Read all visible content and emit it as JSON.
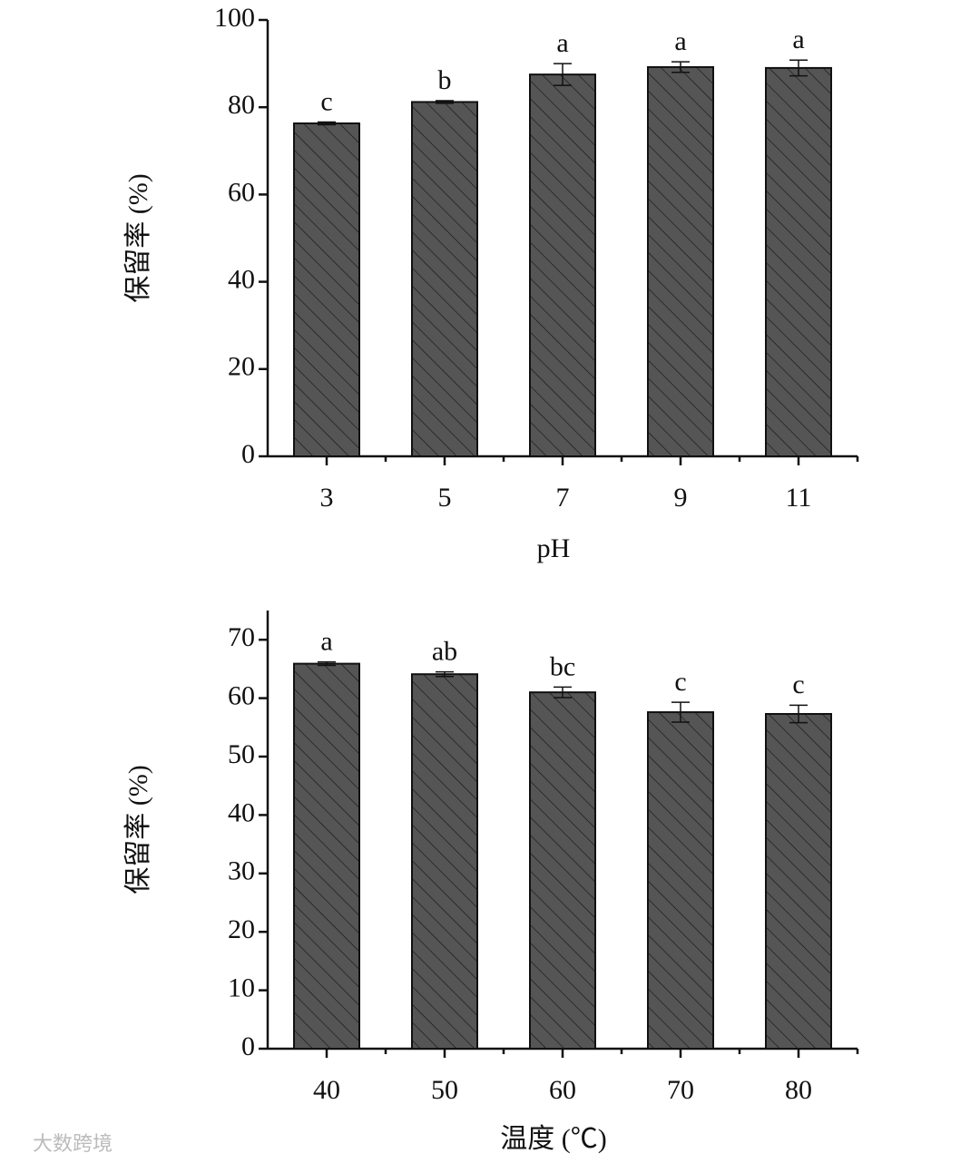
{
  "chart_data": [
    {
      "type": "bar",
      "x_label": "pH",
      "y_label": "保留率 (%)",
      "categories": [
        "3",
        "5",
        "7",
        "9",
        "11"
      ],
      "values": [
        76.3,
        81.2,
        87.5,
        89.2,
        89.0
      ],
      "errors": [
        0.3,
        0.3,
        2.5,
        1.2,
        1.8
      ],
      "annotations": [
        "c",
        "b",
        "a",
        "a",
        "a"
      ],
      "color": "#555555",
      "ylim": [
        0,
        100
      ],
      "yticks": [
        0,
        20,
        40,
        60,
        80,
        100
      ]
    },
    {
      "type": "bar",
      "x_label": "温度 (℃)",
      "y_label": "保留率 (%)",
      "categories": [
        "40",
        "50",
        "60",
        "70",
        "80"
      ],
      "values": [
        65.9,
        64.1,
        61.0,
        57.6,
        57.3
      ],
      "errors": [
        0.3,
        0.4,
        0.9,
        1.7,
        1.5
      ],
      "annotations": [
        "a",
        "ab",
        "bc",
        "c",
        "c"
      ],
      "color": "#555555",
      "ylim": [
        0,
        75
      ],
      "yticks": [
        0,
        10,
        20,
        30,
        40,
        50,
        60,
        70
      ]
    }
  ],
  "watermark": "大数跨境"
}
